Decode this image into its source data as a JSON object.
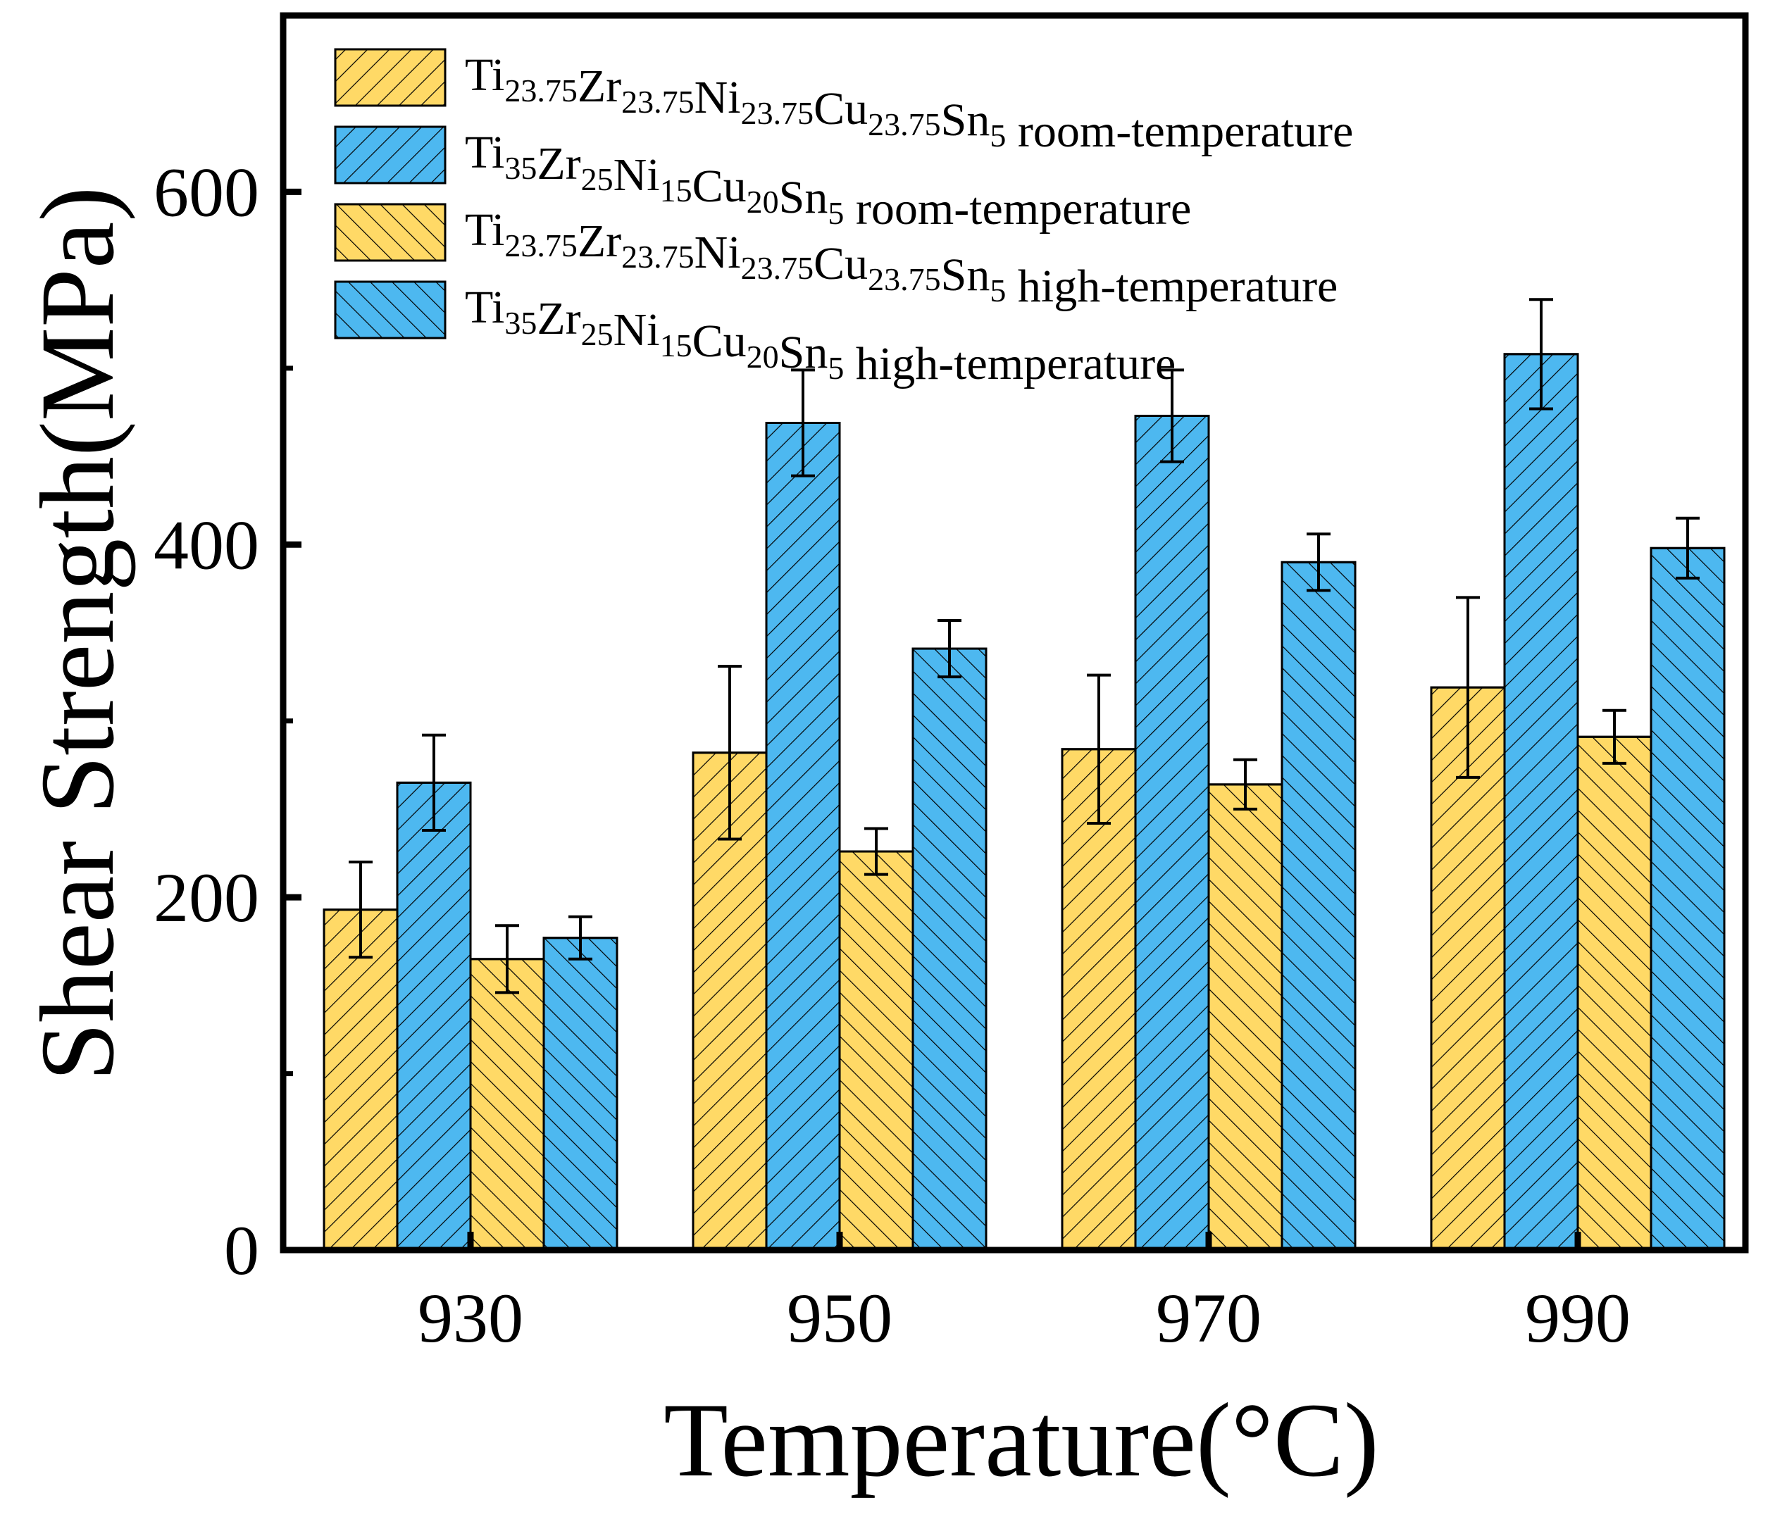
{
  "chart_data": {
    "type": "bar",
    "xlabel": "Temperature(°C)",
    "ylabel": "Shear Strength(MPa)",
    "ylim": [
      0,
      700
    ],
    "yticks": [
      0,
      200,
      400,
      600
    ],
    "categories": [
      "930",
      "950",
      "970",
      "990"
    ],
    "legend_position": "top-left",
    "series": [
      {
        "name": "Ti23.75Zr23.75Ni23.75Cu23.75Sn5 room-temperature",
        "label_parts": [
          [
            "Ti",
            false
          ],
          [
            "23.75",
            true
          ],
          [
            "Zr",
            false
          ],
          [
            "23.75",
            true
          ],
          [
            "Ni",
            false
          ],
          [
            "23.75",
            true
          ],
          [
            "Cu",
            false
          ],
          [
            "23.75",
            true
          ],
          [
            "Sn",
            false
          ],
          [
            "5",
            true
          ],
          [
            " room-temperature",
            false
          ]
        ],
        "color": "#FFD966",
        "hatch": "forward",
        "values": [
          193,
          282,
          284,
          319
        ],
        "errors": [
          27,
          49,
          42,
          51
        ]
      },
      {
        "name": "Ti35Zr25Ni15Cu20Sn5 room-temperature",
        "label_parts": [
          [
            "Ti",
            false
          ],
          [
            "35",
            true
          ],
          [
            "Zr",
            false
          ],
          [
            "25",
            true
          ],
          [
            "Ni",
            false
          ],
          [
            "15",
            true
          ],
          [
            "Cu",
            false
          ],
          [
            "20",
            true
          ],
          [
            "Sn",
            false
          ],
          [
            "5",
            true
          ],
          [
            " room-temperature",
            false
          ]
        ],
        "color": "#4DB8F0",
        "hatch": "forward",
        "values": [
          265,
          469,
          473,
          508
        ],
        "errors": [
          27,
          30,
          26,
          31
        ]
      },
      {
        "name": "Ti23.75Zr23.75Ni23.75Cu23.75Sn5 high-temperature",
        "label_parts": [
          [
            "Ti",
            false
          ],
          [
            "23.75",
            true
          ],
          [
            "Zr",
            false
          ],
          [
            "23.75",
            true
          ],
          [
            "Ni",
            false
          ],
          [
            "23.75",
            true
          ],
          [
            "Cu",
            false
          ],
          [
            "23.75",
            true
          ],
          [
            "Sn",
            false
          ],
          [
            "5",
            true
          ],
          [
            " high-temperature",
            false
          ]
        ],
        "color": "#FFD966",
        "hatch": "backward",
        "values": [
          165,
          226,
          264,
          291
        ],
        "errors": [
          19,
          13,
          14,
          15
        ]
      },
      {
        "name": "Ti35Zr25Ni15Cu20Sn5 high-temperature",
        "label_parts": [
          [
            "Ti",
            false
          ],
          [
            "35",
            true
          ],
          [
            "Zr",
            false
          ],
          [
            "25",
            true
          ],
          [
            "Ni",
            false
          ],
          [
            "15",
            true
          ],
          [
            "Cu",
            false
          ],
          [
            "20",
            true
          ],
          [
            "Sn",
            false
          ],
          [
            "5",
            true
          ],
          [
            " high-temperature",
            false
          ]
        ],
        "color": "#4DB8F0",
        "hatch": "backward",
        "values": [
          177,
          341,
          390,
          398
        ],
        "errors": [
          12,
          16,
          16,
          17
        ]
      }
    ]
  }
}
